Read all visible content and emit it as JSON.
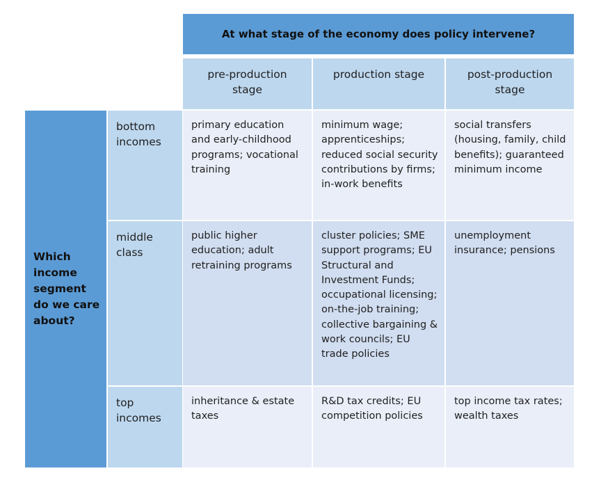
{
  "header": {
    "title": "At what stage of the economy does policy intervene?",
    "columns": [
      "pre-production stage",
      "production stage",
      "post-production stage"
    ]
  },
  "side_label": "Which income segment do we care about?",
  "rows": [
    {
      "label": "bottom incomes",
      "cells": [
        "primary education and early-childhood programs; vocational training",
        "minimum wage; apprenticeships; reduced social security contributions by firms; in-work benefits",
        "social transfers (housing, family, child benefits); guaranteed minimum income"
      ]
    },
    {
      "label": "middle class",
      "cells": [
        "public higher education; adult retraining programs",
        "cluster policies; SME support programs; EU Structural and Investment Funds; occupational licensing; on-the-job training; collective bargaining & work councils; EU trade policies",
        "unemployment insurance; pensions"
      ]
    },
    {
      "label": "top incomes",
      "cells": [
        "inheritance & estate taxes",
        "R&D tax credits; EU competition policies",
        "top income tax rates; wealth taxes"
      ]
    }
  ],
  "colors": {
    "header_dark": "#5b9bd5",
    "header_light": "#bdd7ee",
    "cell_light": "#e9eef8",
    "cell_dark": "#d1ddf0"
  }
}
